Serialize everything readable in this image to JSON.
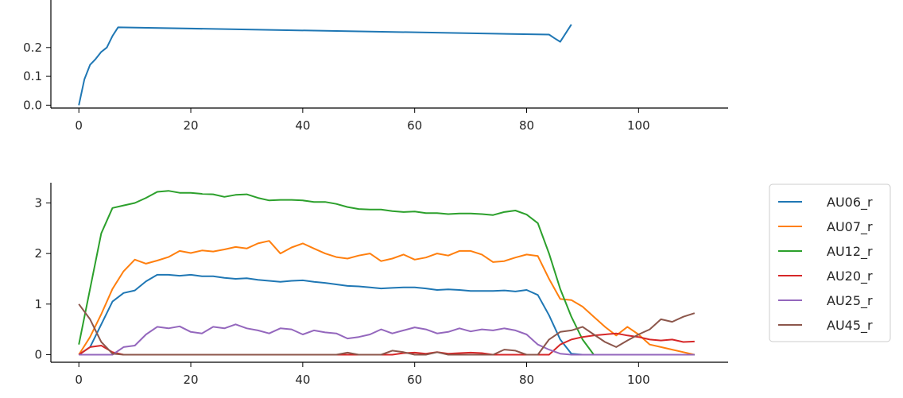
{
  "chart_data": [
    {
      "type": "line",
      "title": "",
      "xlabel": "",
      "ylabel": "",
      "xlim": [
        -5,
        116
      ],
      "ylim": [
        -0.01,
        0.42
      ],
      "xticks": [
        0,
        20,
        40,
        60,
        80,
        100
      ],
      "yticks": [
        0.0,
        0.1,
        0.2
      ],
      "xtick_labels": [
        "0",
        "20",
        "40",
        "60",
        "80",
        "100"
      ],
      "ytick_labels": [
        "0.0",
        "0.1",
        "0.2"
      ],
      "grid": false,
      "colors": [
        "#1f77b4"
      ],
      "series": [
        {
          "x": [
            0,
            1,
            2,
            3,
            4,
            5,
            6,
            7,
            84,
            85,
            86,
            87,
            88
          ],
          "y": [
            0.0,
            0.09,
            0.14,
            0.16,
            0.185,
            0.2,
            0.24,
            0.27,
            0.245,
            0.232,
            0.22,
            0.25,
            0.28
          ]
        }
      ]
    },
    {
      "type": "line",
      "title": "",
      "xlabel": "",
      "ylabel": "",
      "xlim": [
        -5,
        116
      ],
      "ylim": [
        -0.15,
        3.4
      ],
      "xticks": [
        0,
        20,
        40,
        60,
        80,
        100
      ],
      "yticks": [
        0,
        1,
        2,
        3
      ],
      "xtick_labels": [
        "0",
        "20",
        "40",
        "60",
        "80",
        "100"
      ],
      "ytick_labels": [
        "0",
        "1",
        "2",
        "3"
      ],
      "grid": false,
      "legend_position": "outside right",
      "series": [
        {
          "name": "AU06_r",
          "color": "#1f77b4",
          "points": [
            [
              0,
              0
            ],
            [
              2,
              0.15
            ],
            [
              4,
              0.6
            ],
            [
              6,
              1.05
            ],
            [
              8,
              1.22
            ],
            [
              10,
              1.27
            ],
            [
              12,
              1.45
            ],
            [
              14,
              1.58
            ],
            [
              16,
              1.58
            ],
            [
              18,
              1.56
            ],
            [
              20,
              1.58
            ],
            [
              22,
              1.55
            ],
            [
              24,
              1.55
            ],
            [
              26,
              1.52
            ],
            [
              28,
              1.5
            ],
            [
              30,
              1.51
            ],
            [
              32,
              1.48
            ],
            [
              34,
              1.46
            ],
            [
              36,
              1.44
            ],
            [
              38,
              1.46
            ],
            [
              40,
              1.47
            ],
            [
              42,
              1.44
            ],
            [
              44,
              1.42
            ],
            [
              46,
              1.39
            ],
            [
              48,
              1.36
            ],
            [
              50,
              1.35
            ],
            [
              52,
              1.33
            ],
            [
              54,
              1.31
            ],
            [
              56,
              1.32
            ],
            [
              58,
              1.33
            ],
            [
              60,
              1.33
            ],
            [
              62,
              1.31
            ],
            [
              64,
              1.28
            ],
            [
              66,
              1.29
            ],
            [
              68,
              1.28
            ],
            [
              70,
              1.26
            ],
            [
              72,
              1.26
            ],
            [
              74,
              1.26
            ],
            [
              76,
              1.27
            ],
            [
              78,
              1.25
            ],
            [
              80,
              1.28
            ],
            [
              82,
              1.18
            ],
            [
              84,
              0.78
            ],
            [
              86,
              0.3
            ],
            [
              88,
              0.02
            ],
            [
              90,
              0
            ],
            [
              100,
              0
            ],
            [
              110,
              0
            ]
          ]
        },
        {
          "name": "AU07_r",
          "color": "#ff7f0e",
          "points": [
            [
              0,
              0
            ],
            [
              2,
              0.35
            ],
            [
              4,
              0.8
            ],
            [
              6,
              1.3
            ],
            [
              8,
              1.65
            ],
            [
              10,
              1.88
            ],
            [
              12,
              1.8
            ],
            [
              14,
              1.86
            ],
            [
              16,
              1.93
            ],
            [
              18,
              2.05
            ],
            [
              20,
              2.01
            ],
            [
              22,
              2.06
            ],
            [
              24,
              2.04
            ],
            [
              26,
              2.08
            ],
            [
              28,
              2.13
            ],
            [
              30,
              2.1
            ],
            [
              32,
              2.2
            ],
            [
              34,
              2.25
            ],
            [
              36,
              2.0
            ],
            [
              38,
              2.12
            ],
            [
              40,
              2.2
            ],
            [
              42,
              2.1
            ],
            [
              44,
              2.0
            ],
            [
              46,
              1.93
            ],
            [
              48,
              1.9
            ],
            [
              50,
              1.96
            ],
            [
              52,
              2.0
            ],
            [
              54,
              1.85
            ],
            [
              56,
              1.9
            ],
            [
              58,
              1.98
            ],
            [
              60,
              1.88
            ],
            [
              62,
              1.92
            ],
            [
              64,
              2.0
            ],
            [
              66,
              1.96
            ],
            [
              68,
              2.05
            ],
            [
              70,
              2.05
            ],
            [
              72,
              1.98
            ],
            [
              74,
              1.83
            ],
            [
              76,
              1.85
            ],
            [
              78,
              1.92
            ],
            [
              80,
              1.98
            ],
            [
              82,
              1.95
            ],
            [
              84,
              1.5
            ],
            [
              86,
              1.1
            ],
            [
              88,
              1.08
            ],
            [
              90,
              0.95
            ],
            [
              92,
              0.75
            ],
            [
              94,
              0.55
            ],
            [
              96,
              0.38
            ],
            [
              98,
              0.55
            ],
            [
              100,
              0.4
            ],
            [
              102,
              0.2
            ],
            [
              104,
              0.15
            ],
            [
              106,
              0.1
            ],
            [
              108,
              0.05
            ],
            [
              110,
              0
            ]
          ]
        },
        {
          "name": "AU12_r",
          "color": "#2ca02c",
          "points": [
            [
              0,
              0.2
            ],
            [
              2,
              1.3
            ],
            [
              4,
              2.4
            ],
            [
              6,
              2.9
            ],
            [
              8,
              2.95
            ],
            [
              10,
              3.0
            ],
            [
              12,
              3.1
            ],
            [
              14,
              3.22
            ],
            [
              16,
              3.24
            ],
            [
              18,
              3.2
            ],
            [
              20,
              3.2
            ],
            [
              22,
              3.18
            ],
            [
              24,
              3.17
            ],
            [
              26,
              3.12
            ],
            [
              28,
              3.16
            ],
            [
              30,
              3.17
            ],
            [
              32,
              3.1
            ],
            [
              34,
              3.05
            ],
            [
              36,
              3.06
            ],
            [
              38,
              3.06
            ],
            [
              40,
              3.05
            ],
            [
              42,
              3.02
            ],
            [
              44,
              3.02
            ],
            [
              46,
              2.98
            ],
            [
              48,
              2.92
            ],
            [
              50,
              2.88
            ],
            [
              52,
              2.87
            ],
            [
              54,
              2.87
            ],
            [
              56,
              2.84
            ],
            [
              58,
              2.82
            ],
            [
              60,
              2.83
            ],
            [
              62,
              2.8
            ],
            [
              64,
              2.8
            ],
            [
              66,
              2.78
            ],
            [
              68,
              2.79
            ],
            [
              70,
              2.79
            ],
            [
              72,
              2.78
            ],
            [
              74,
              2.76
            ],
            [
              76,
              2.82
            ],
            [
              78,
              2.85
            ],
            [
              80,
              2.77
            ],
            [
              82,
              2.6
            ],
            [
              84,
              2.0
            ],
            [
              86,
              1.3
            ],
            [
              88,
              0.75
            ],
            [
              90,
              0.3
            ],
            [
              92,
              0.0
            ],
            [
              100,
              0
            ],
            [
              110,
              0
            ]
          ]
        },
        {
          "name": "AU20_r",
          "color": "#d62728",
          "points": [
            [
              0,
              0
            ],
            [
              2,
              0.15
            ],
            [
              4,
              0.18
            ],
            [
              6,
              0.05
            ],
            [
              8,
              0
            ],
            [
              46,
              0
            ],
            [
              56,
              0
            ],
            [
              58,
              0.03
            ],
            [
              60,
              0.04
            ],
            [
              62,
              0.02
            ],
            [
              64,
              0.05
            ],
            [
              66,
              0.02
            ],
            [
              68,
              0.03
            ],
            [
              70,
              0.04
            ],
            [
              72,
              0.03
            ],
            [
              74,
              0
            ],
            [
              84,
              0
            ],
            [
              86,
              0.2
            ],
            [
              88,
              0.3
            ],
            [
              90,
              0.35
            ],
            [
              92,
              0.38
            ],
            [
              94,
              0.4
            ],
            [
              96,
              0.42
            ],
            [
              98,
              0.38
            ],
            [
              100,
              0.35
            ],
            [
              102,
              0.3
            ],
            [
              104,
              0.28
            ],
            [
              106,
              0.3
            ],
            [
              108,
              0.25
            ],
            [
              110,
              0.26
            ]
          ]
        },
        {
          "name": "AU25_r",
          "color": "#9467bd",
          "points": [
            [
              0,
              0
            ],
            [
              6,
              0
            ],
            [
              8,
              0.15
            ],
            [
              10,
              0.18
            ],
            [
              12,
              0.4
            ],
            [
              14,
              0.55
            ],
            [
              16,
              0.52
            ],
            [
              18,
              0.56
            ],
            [
              20,
              0.45
            ],
            [
              22,
              0.42
            ],
            [
              24,
              0.55
            ],
            [
              26,
              0.52
            ],
            [
              28,
              0.6
            ],
            [
              30,
              0.52
            ],
            [
              32,
              0.48
            ],
            [
              34,
              0.42
            ],
            [
              36,
              0.52
            ],
            [
              38,
              0.5
            ],
            [
              40,
              0.4
            ],
            [
              42,
              0.48
            ],
            [
              44,
              0.44
            ],
            [
              46,
              0.42
            ],
            [
              48,
              0.32
            ],
            [
              50,
              0.35
            ],
            [
              52,
              0.4
            ],
            [
              54,
              0.5
            ],
            [
              56,
              0.42
            ],
            [
              58,
              0.48
            ],
            [
              60,
              0.54
            ],
            [
              62,
              0.5
            ],
            [
              64,
              0.42
            ],
            [
              66,
              0.45
            ],
            [
              68,
              0.52
            ],
            [
              70,
              0.46
            ],
            [
              72,
              0.5
            ],
            [
              74,
              0.48
            ],
            [
              76,
              0.52
            ],
            [
              78,
              0.48
            ],
            [
              80,
              0.4
            ],
            [
              82,
              0.2
            ],
            [
              84,
              0.1
            ],
            [
              86,
              0.02
            ],
            [
              88,
              0
            ],
            [
              110,
              0
            ]
          ]
        },
        {
          "name": "AU45_r",
          "color": "#8c564b",
          "points": [
            [
              0,
              1.0
            ],
            [
              2,
              0.7
            ],
            [
              4,
              0.25
            ],
            [
              6,
              0.02
            ],
            [
              8,
              0
            ],
            [
              46,
              0
            ],
            [
              48,
              0.04
            ],
            [
              50,
              0
            ],
            [
              54,
              0
            ],
            [
              56,
              0.08
            ],
            [
              58,
              0.05
            ],
            [
              60,
              0
            ],
            [
              62,
              0
            ],
            [
              64,
              0.05
            ],
            [
              66,
              0
            ],
            [
              74,
              0
            ],
            [
              76,
              0.1
            ],
            [
              78,
              0.08
            ],
            [
              80,
              0
            ],
            [
              82,
              0
            ],
            [
              84,
              0.3
            ],
            [
              86,
              0.45
            ],
            [
              88,
              0.48
            ],
            [
              90,
              0.55
            ],
            [
              92,
              0.4
            ],
            [
              94,
              0.25
            ],
            [
              96,
              0.15
            ],
            [
              98,
              0.28
            ],
            [
              100,
              0.4
            ],
            [
              102,
              0.5
            ],
            [
              104,
              0.7
            ],
            [
              106,
              0.65
            ],
            [
              108,
              0.75
            ],
            [
              110,
              0.82
            ]
          ]
        }
      ]
    }
  ]
}
